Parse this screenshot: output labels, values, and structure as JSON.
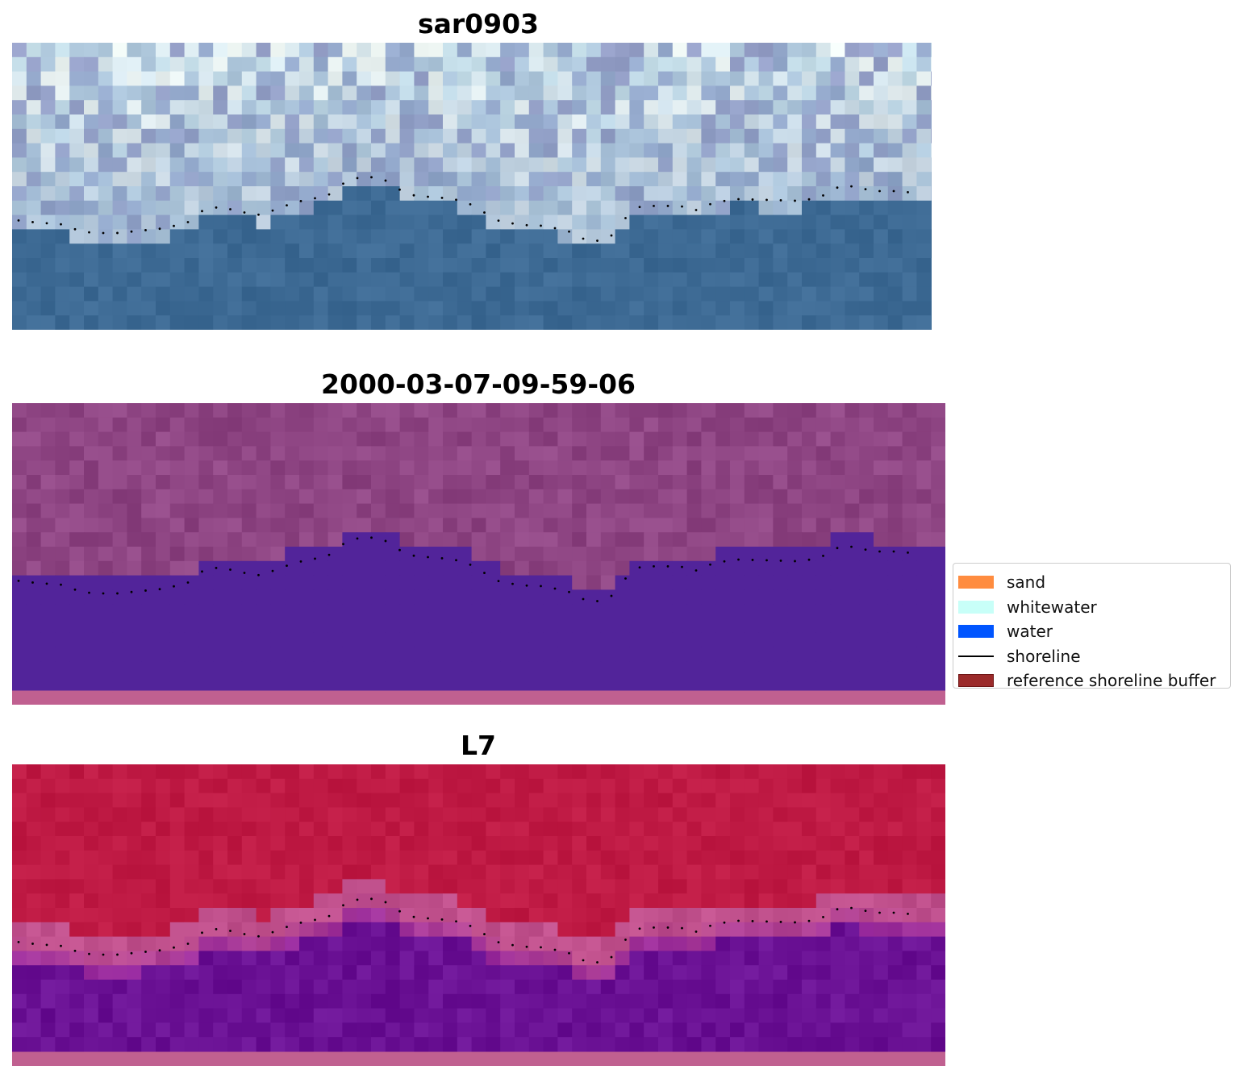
{
  "panels": [
    {
      "title": "sar0903",
      "kind": "rgb"
    },
    {
      "title": "2000-03-07-09-59-06",
      "kind": "classified"
    },
    {
      "title": "L7",
      "kind": "mndwi"
    }
  ],
  "legend": {
    "items": [
      {
        "label": "sand",
        "color": "#ff8c3f",
        "type": "patch"
      },
      {
        "label": "whitewater",
        "color": "#c8fff8",
        "type": "patch"
      },
      {
        "label": "water",
        "color": "#0055ff",
        "type": "patch"
      },
      {
        "label": "shoreline",
        "color": "#000000",
        "type": "line"
      },
      {
        "label": "reference shoreline buffer",
        "color": "#9b2a2a",
        "type": "patch"
      }
    ]
  },
  "colors": {
    "water_rgb": "#3d6a94",
    "classified_land": "#8e4583",
    "classified_water": "#52249a",
    "mndwi_land": "#bf1a44",
    "mndwi_water": "#6a1194",
    "buffer_overlay": "#c06090"
  }
}
